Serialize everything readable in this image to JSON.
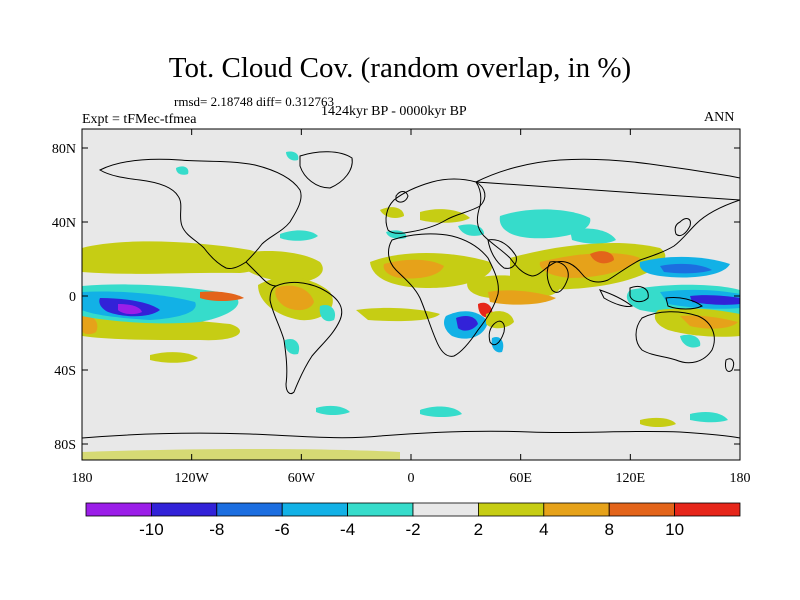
{
  "title": "Tot. Cloud Cov. (random overlap, in %)",
  "stats_line": "rmsd= 2.18748 diff= 0.312763",
  "period": "1424kyr BP - 0000kyr BP",
  "experiment": "Expt = tFMec-tfmea",
  "season": "ANN",
  "x_ticks": [
    {
      "label": "180",
      "lon": -180
    },
    {
      "label": "120W",
      "lon": -120
    },
    {
      "label": "60W",
      "lon": -60
    },
    {
      "label": "0",
      "lon": 0
    },
    {
      "label": "60E",
      "lon": 60
    },
    {
      "label": "120E",
      "lon": 120
    },
    {
      "label": "180",
      "lon": 180
    }
  ],
  "y_ticks": [
    {
      "label": "80N",
      "lat": 80
    },
    {
      "label": "40N",
      "lat": 40
    },
    {
      "label": "0",
      "lat": 0
    },
    {
      "label": "40S",
      "lat": -40
    },
    {
      "label": "80S",
      "lat": -80
    }
  ],
  "colorbar": {
    "levels": [
      "-10",
      "-8",
      "-6",
      "-4",
      "-2",
      "2",
      "4",
      "8",
      "10"
    ],
    "colors": [
      "#9b1ee8",
      "#3222d8",
      "#1c6ee0",
      "#12b1e6",
      "#36dccb",
      "#e8e8e8",
      "#c6cd14",
      "#e6a21a",
      "#e3641a",
      "#e6261a"
    ]
  },
  "palette": {
    "ocean_bg": "#e8e8e8",
    "coast": "#000000"
  }
}
